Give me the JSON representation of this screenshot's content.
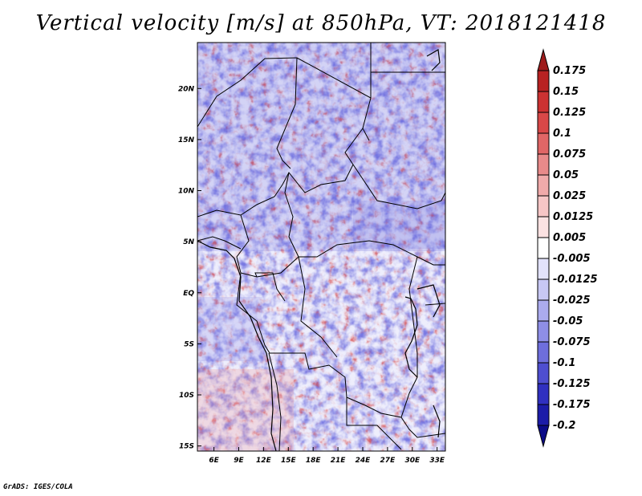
{
  "title": "Vertical velocity [m/s] at 850hPa, VT: 2018121418",
  "credit": "GrADS: IGES/COLA",
  "map": {
    "lat_range": [
      -15.5,
      24.5
    ],
    "lon_range": [
      4,
      34
    ],
    "lat_ticks": [
      {
        "value": 20,
        "label": "20N"
      },
      {
        "value": 15,
        "label": "15N"
      },
      {
        "value": 10,
        "label": "10N"
      },
      {
        "value": 5,
        "label": "5N"
      },
      {
        "value": 0,
        "label": "EQ"
      },
      {
        "value": -5,
        "label": "5S"
      },
      {
        "value": -10,
        "label": "10S"
      },
      {
        "value": -15,
        "label": "15S"
      }
    ],
    "lon_ticks": [
      {
        "value": 6,
        "label": "6E"
      },
      {
        "value": 9,
        "label": "9E"
      },
      {
        "value": 12,
        "label": "12E"
      },
      {
        "value": 15,
        "label": "15E"
      },
      {
        "value": 18,
        "label": "18E"
      },
      {
        "value": 21,
        "label": "21E"
      },
      {
        "value": 24,
        "label": "24E"
      },
      {
        "value": 27,
        "label": "27E"
      },
      {
        "value": 30,
        "label": "30E"
      },
      {
        "value": 33,
        "label": "33E"
      }
    ]
  },
  "colorbar": {
    "labels": [
      "0.175",
      "0.15",
      "0.125",
      "0.1",
      "0.075",
      "0.05",
      "0.025",
      "0.0125",
      "0.005",
      "-0.005",
      "-0.0125",
      "-0.025",
      "-0.05",
      "-0.075",
      "-0.1",
      "-0.125",
      "-0.175",
      "-0.2"
    ],
    "colors": [
      "#9e1c1c",
      "#b82222",
      "#cc3232",
      "#d84848",
      "#e06666",
      "#e88a8a",
      "#f0aaaa",
      "#f6c6c6",
      "#fbe2e2",
      "#ffffff",
      "#e2e2fb",
      "#c8c8f4",
      "#ababee",
      "#8e8ee6",
      "#6e6edc",
      "#4e4ed0",
      "#3030c0",
      "#1c1ca8",
      "#0c0c88"
    ]
  }
}
